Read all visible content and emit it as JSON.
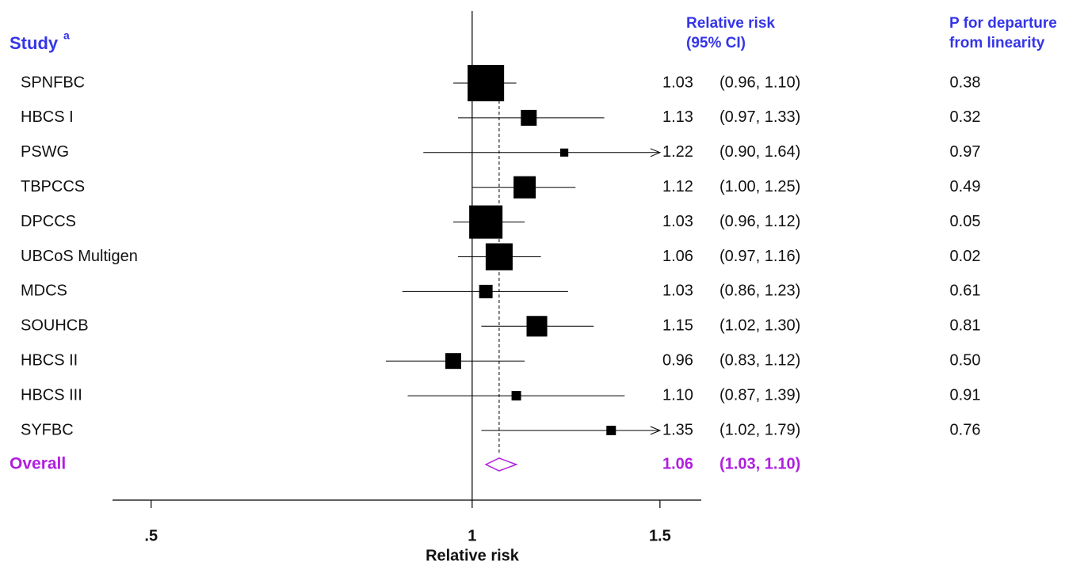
{
  "chart_data": {
    "type": "forest",
    "study_header": "Study",
    "study_header_note": "a",
    "rr_header": [
      "Relative risk",
      "(95% CI)"
    ],
    "p_header": [
      "P for departure",
      "from linearity"
    ],
    "xlabel": "Relative risk",
    "log_x": true,
    "xlim": [
      0.46,
      1.64
    ],
    "xticks": [
      {
        "value": 0.5,
        "label": ".5"
      },
      1,
      1.5
    ],
    "null_value": 1,
    "color": "#000000",
    "header_color": "#3535e8",
    "overall_color": "#b01ee0",
    "studies": [
      {
        "name": "SPNFBC",
        "estimate": 1.03,
        "lower": 0.96,
        "upper": 1.1,
        "weight": 26.5,
        "estimate_label": "1.03",
        "ci_label": "(0.96, 1.10)",
        "p": "0.38"
      },
      {
        "name": "HBCS I",
        "estimate": 1.13,
        "lower": 0.97,
        "upper": 1.33,
        "weight": 5.0,
        "estimate_label": "1.13",
        "ci_label": "(0.97, 1.33)",
        "p": "0.32"
      },
      {
        "name": "PSWG",
        "estimate": 1.22,
        "lower": 0.9,
        "upper": 1.64,
        "weight": 1.3,
        "estimate_label": "1.22",
        "ci_label": "(0.90, 1.64)",
        "p": "0.97"
      },
      {
        "name": "TBPCCS",
        "estimate": 1.12,
        "lower": 1.0,
        "upper": 1.25,
        "weight": 9.8,
        "estimate_label": "1.12",
        "ci_label": "(1.00, 1.25)",
        "p": "0.49"
      },
      {
        "name": "DPCCS",
        "estimate": 1.03,
        "lower": 0.96,
        "upper": 1.12,
        "weight": 22.1,
        "estimate_label": "1.03",
        "ci_label": "(0.96, 1.12)",
        "p": "0.05"
      },
      {
        "name": "UBCoS Multigen",
        "estimate": 1.06,
        "lower": 0.97,
        "upper": 1.16,
        "weight": 14.5,
        "estimate_label": "1.06",
        "ci_label": "(0.97, 1.16)",
        "p": "0.02"
      },
      {
        "name": "MDCS",
        "estimate": 1.03,
        "lower": 0.86,
        "upper": 1.23,
        "weight": 3.6,
        "estimate_label": "1.03",
        "ci_label": "(0.86, 1.23)",
        "p": "0.61"
      },
      {
        "name": "SOUHCB",
        "estimate": 1.15,
        "lower": 1.02,
        "upper": 1.3,
        "weight": 8.5,
        "estimate_label": "1.15",
        "ci_label": "(1.02, 1.30)",
        "p": "0.81"
      },
      {
        "name": "HBCS II",
        "estimate": 0.96,
        "lower": 0.83,
        "upper": 1.12,
        "weight": 5.0,
        "estimate_label": "0.96",
        "ci_label": "(0.83, 1.12)",
        "p": "0.50"
      },
      {
        "name": "HBCS III",
        "estimate": 1.1,
        "lower": 0.87,
        "upper": 1.39,
        "weight": 1.8,
        "estimate_label": "1.10",
        "ci_label": "(0.87, 1.39)",
        "p": "0.91"
      },
      {
        "name": "SYFBC",
        "estimate": 1.35,
        "lower": 1.02,
        "upper": 1.79,
        "weight": 1.8,
        "estimate_label": "1.35",
        "ci_label": "(1.02, 1.79)",
        "p": "0.76"
      }
    ],
    "overall": {
      "name": "Overall",
      "estimate": 1.06,
      "lower": 1.03,
      "upper": 1.1,
      "estimate_label": "1.06",
      "ci_label": "(1.03, 1.10)"
    }
  }
}
